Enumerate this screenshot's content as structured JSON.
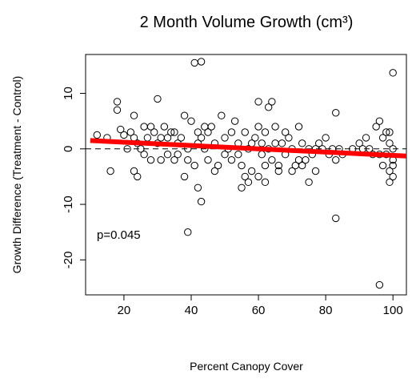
{
  "chart_data": {
    "type": "scatter",
    "title": "2 Month Volume Growth (cm³)",
    "x_label": "Percent Canopy Cover",
    "y_label": "Growth Difference (Treatment - Control)",
    "annotation": "p=0.045",
    "x": [
      41,
      43,
      39,
      43,
      83,
      96,
      100,
      18,
      18,
      30,
      23,
      60,
      64,
      63,
      83,
      16,
      23,
      24,
      38,
      42,
      55,
      57,
      60,
      62,
      66,
      70,
      75,
      73,
      99,
      100,
      99,
      12,
      15,
      19,
      20,
      22,
      23,
      24,
      25,
      26,
      27,
      28,
      29,
      30,
      31,
      32,
      33,
      34,
      35,
      36,
      37,
      38,
      39,
      40,
      41,
      42,
      43,
      44,
      45,
      46,
      47,
      48,
      49,
      50,
      51,
      52,
      53,
      54,
      55,
      56,
      57,
      58,
      59,
      60,
      61,
      62,
      63,
      64,
      65,
      66,
      67,
      68,
      69,
      70,
      71,
      72,
      73,
      74,
      75,
      76,
      77,
      78,
      79,
      80,
      81,
      82,
      83,
      84,
      85,
      88,
      90,
      91,
      92,
      93,
      94,
      95,
      96,
      97,
      98,
      99,
      100,
      100,
      99,
      98,
      97,
      96,
      100,
      62,
      58,
      52,
      47,
      44,
      36,
      31,
      26,
      21,
      33,
      39,
      45,
      54,
      61,
      68,
      72,
      77,
      65,
      56,
      50,
      42,
      35,
      28
    ],
    "y": [
      15.5,
      15.7,
      -15,
      -9.5,
      -12.5,
      -24.5,
      13.7,
      8.5,
      7,
      9,
      6,
      8.5,
      8.5,
      7.5,
      6.5,
      -4,
      -4,
      -5,
      -5,
      -7,
      -7,
      -6,
      -5,
      -6,
      -4,
      -4,
      -6,
      -3,
      -6,
      -5,
      -4,
      2.5,
      2,
      3.5,
      2.5,
      3,
      2,
      1,
      0,
      -1,
      2,
      4,
      3,
      1,
      2,
      4,
      -1,
      3,
      -2,
      1,
      2,
      6,
      0,
      5,
      -3,
      3,
      2,
      0,
      -2,
      4,
      1,
      -3,
      6,
      2,
      0,
      -2,
      5,
      1,
      -3,
      3,
      0,
      -4,
      2,
      4,
      -1,
      3,
      0,
      -2,
      4,
      -3,
      1,
      -1,
      2,
      0,
      -3,
      4,
      1,
      -2,
      0,
      -1,
      -4,
      1,
      0,
      2,
      -1,
      0,
      -2,
      0,
      -1,
      0,
      1,
      0,
      2,
      0,
      -1,
      4,
      5,
      2,
      -1,
      3,
      0,
      -2,
      1,
      3,
      -3,
      -1,
      -3,
      -3,
      1,
      3,
      -4,
      4,
      -1,
      -2,
      4,
      0,
      2,
      -2,
      3,
      -1,
      1,
      3,
      -2,
      0,
      1,
      -5,
      -1,
      1,
      3,
      -2
    ],
    "point_color": "#000000",
    "trend": {
      "x": [
        10,
        104
      ],
      "y": [
        1.5,
        -1.3
      ],
      "color": "#ff0000"
    },
    "reference_line": 0,
    "xlim": [
      8.6,
      104
    ],
    "ylim": [
      -26.3,
      17
    ],
    "xticks": [
      20,
      40,
      60,
      80,
      100
    ],
    "yticks": [
      -20,
      -10,
      0,
      10
    ]
  }
}
